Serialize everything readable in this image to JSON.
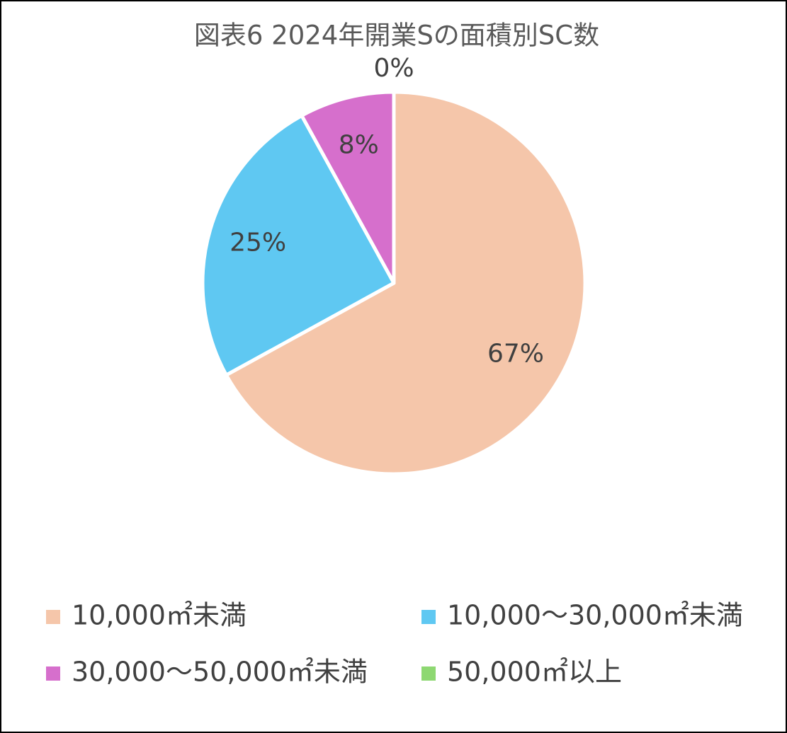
{
  "chart_data": {
    "type": "pie",
    "title": "図表6 2024年開業Sの面積別SC数",
    "categories": [
      "10,000㎡未満",
      "10,000～30,000㎡未満",
      "30,000～50,000㎡未満",
      "50,000㎡以上"
    ],
    "values": [
      67,
      25,
      8,
      0
    ],
    "value_labels": [
      "67%",
      "25%",
      "8%",
      "0%"
    ],
    "colors": [
      "#f5c6aa",
      "#5fc8f2",
      "#d66fcc",
      "#8ed872"
    ]
  }
}
